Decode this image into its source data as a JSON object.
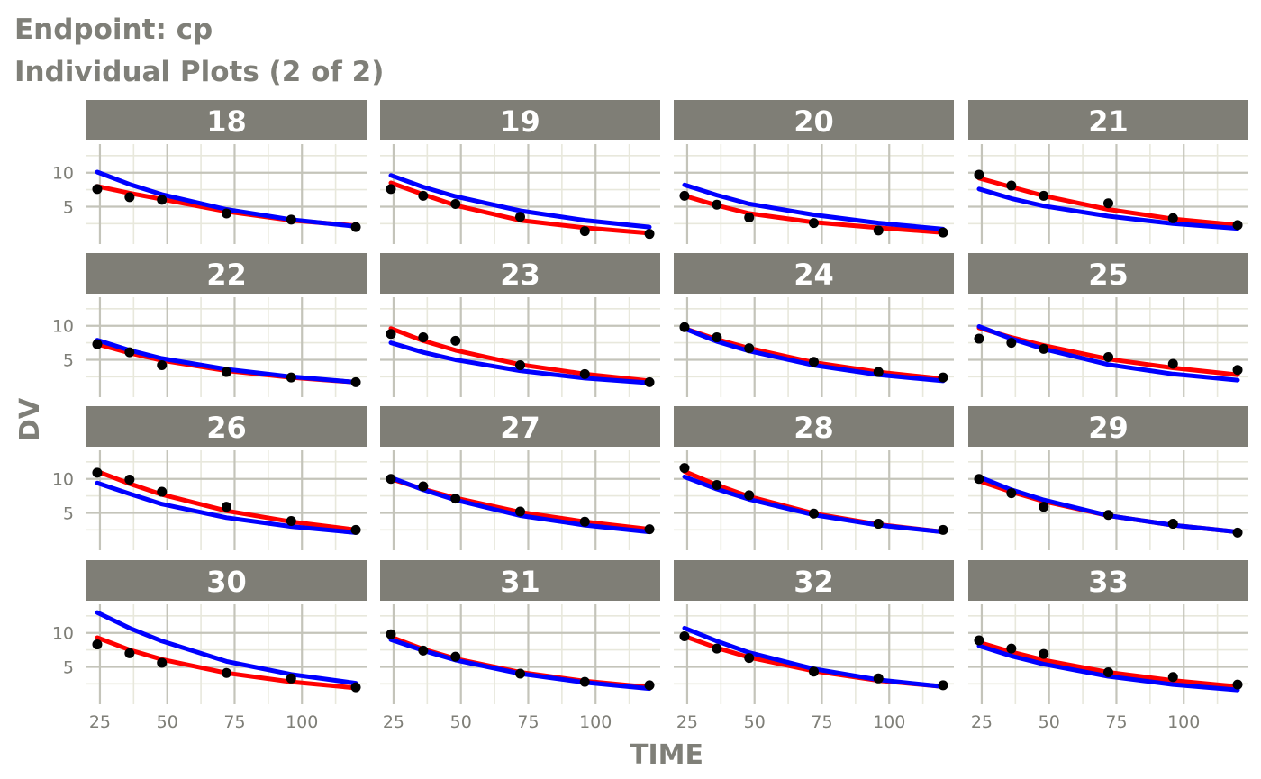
{
  "chart_data": {
    "type": "line",
    "title": "Endpoint:  cp",
    "subtitle": "Individual Plots (2 of 2)",
    "xlabel": "TIME",
    "ylabel": "DV",
    "xlim": [
      20,
      124
    ],
    "ylim": [
      -0.5,
      14.2
    ],
    "x_ticks": [
      25,
      50,
      75,
      100
    ],
    "y_ticks": [
      5,
      10
    ],
    "grid": true,
    "legend": "none",
    "layout": {
      "rows": 4,
      "cols": 4
    },
    "colors": {
      "observed": "#000000",
      "pred": "#ff0000",
      "ipred": "#0000ff",
      "strip": "#7f7e76"
    },
    "series_styles": [
      {
        "key": "obs",
        "kind": "point",
        "color": "#000000"
      },
      {
        "key": "pred",
        "kind": "line",
        "color": "#ff0000"
      },
      {
        "key": "ipred",
        "kind": "line",
        "color": "#0000ff"
      }
    ],
    "x": [
      24,
      36,
      48,
      72,
      96,
      120
    ],
    "panels": [
      {
        "label": "18",
        "obs": [
          7.6,
          6.4,
          6.0,
          4.0,
          3.1,
          2.0
        ],
        "pred": [
          8.0,
          7.0,
          6.1,
          4.3,
          3.0,
          2.2
        ],
        "ipred": [
          10.1,
          8.3,
          6.8,
          4.6,
          3.1,
          2.1
        ]
      },
      {
        "label": "19",
        "obs": [
          7.6,
          6.6,
          5.4,
          3.5,
          1.4,
          1.0
        ],
        "pred": [
          8.5,
          6.8,
          5.2,
          3.0,
          1.9,
          1.1
        ],
        "ipred": [
          9.6,
          7.9,
          6.5,
          4.4,
          3.0,
          2.0
        ]
      },
      {
        "label": "20",
        "obs": [
          6.6,
          5.3,
          3.4,
          2.6,
          1.5,
          1.2
        ],
        "pred": [
          6.6,
          5.2,
          4.0,
          2.7,
          1.9,
          1.2
        ],
        "ipred": [
          8.2,
          6.7,
          5.4,
          3.8,
          2.6,
          1.7
        ]
      },
      {
        "label": "21",
        "obs": [
          9.7,
          8.1,
          6.6,
          5.5,
          3.3,
          2.3
        ],
        "pred": [
          9.2,
          7.9,
          6.6,
          4.6,
          3.2,
          2.3
        ],
        "ipred": [
          7.6,
          6.2,
          5.1,
          3.6,
          2.5,
          1.8
        ]
      },
      {
        "label": "22",
        "obs": [
          7.3,
          6.1,
          4.2,
          3.2,
          2.4,
          1.7
        ],
        "pred": [
          7.3,
          6.0,
          4.9,
          3.4,
          2.4,
          1.7
        ],
        "ipred": [
          7.9,
          6.4,
          5.2,
          3.6,
          2.5,
          1.7
        ]
      },
      {
        "label": "23",
        "obs": [
          8.8,
          8.3,
          7.8,
          4.2,
          2.9,
          1.7
        ],
        "pred": [
          9.6,
          7.8,
          6.4,
          4.3,
          2.9,
          1.9
        ],
        "ipred": [
          7.5,
          6.1,
          5.0,
          3.4,
          2.3,
          1.6
        ]
      },
      {
        "label": "24",
        "obs": [
          9.8,
          8.3,
          6.7,
          4.7,
          3.2,
          2.4
        ],
        "pred": [
          9.6,
          8.0,
          6.7,
          4.6,
          3.2,
          2.2
        ],
        "ipred": [
          9.6,
          7.7,
          6.3,
          4.2,
          2.8,
          1.9
        ]
      },
      {
        "label": "25",
        "obs": [
          8.1,
          7.5,
          6.6,
          5.4,
          4.4,
          3.5
        ],
        "pred": [
          9.7,
          8.3,
          7.1,
          5.1,
          3.8,
          2.8
        ],
        "ipred": [
          9.9,
          8.1,
          6.6,
          4.3,
          2.9,
          2.0
        ]
      },
      {
        "label": "26",
        "obs": [
          10.9,
          9.9,
          8.1,
          5.9,
          3.8,
          2.5
        ],
        "pred": [
          11.1,
          9.3,
          7.7,
          5.3,
          3.7,
          2.5
        ],
        "ipred": [
          9.4,
          7.8,
          6.3,
          4.3,
          3.0,
          2.1
        ]
      },
      {
        "label": "27",
        "obs": [
          10.0,
          8.9,
          7.1,
          5.2,
          3.7,
          2.6
        ],
        "pred": [
          10.0,
          8.5,
          7.2,
          5.1,
          3.7,
          2.6
        ],
        "ipred": [
          10.2,
          8.4,
          6.9,
          4.6,
          3.2,
          2.2
        ]
      },
      {
        "label": "28",
        "obs": [
          11.6,
          9.1,
          7.6,
          4.9,
          3.4,
          2.5
        ],
        "pred": [
          11.1,
          9.1,
          7.4,
          4.9,
          3.3,
          2.2
        ],
        "ipred": [
          10.3,
          8.5,
          7.0,
          4.7,
          3.2,
          2.2
        ]
      },
      {
        "label": "29",
        "obs": [
          10.0,
          7.9,
          5.9,
          4.7,
          3.4,
          2.1
        ],
        "pred": [
          9.7,
          8.1,
          6.7,
          4.6,
          3.2,
          2.2
        ],
        "ipred": [
          10.3,
          8.4,
          6.9,
          4.6,
          3.2,
          2.2
        ]
      },
      {
        "label": "30",
        "obs": [
          8.3,
          7.0,
          5.6,
          4.1,
          3.3,
          2.0
        ],
        "pred": [
          9.3,
          7.5,
          6.1,
          4.1,
          2.8,
          1.9
        ],
        "ipred": [
          13.0,
          10.7,
          8.8,
          5.8,
          3.9,
          2.6
        ]
      },
      {
        "label": "31",
        "obs": [
          9.8,
          7.4,
          6.5,
          4.0,
          2.8,
          2.3
        ],
        "pred": [
          9.4,
          7.6,
          6.2,
          4.2,
          2.9,
          2.0
        ],
        "ipred": [
          9.0,
          7.4,
          6.0,
          4.0,
          2.7,
          1.8
        ]
      },
      {
        "label": "32",
        "obs": [
          9.5,
          7.7,
          6.3,
          4.3,
          3.3,
          2.3
        ],
        "pred": [
          9.5,
          7.8,
          6.4,
          4.4,
          3.0,
          2.1
        ],
        "ipred": [
          10.7,
          8.8,
          7.1,
          4.7,
          3.1,
          2.1
        ]
      },
      {
        "label": "33",
        "obs": [
          8.9,
          7.7,
          6.9,
          4.2,
          3.5,
          2.4
        ],
        "pred": [
          8.6,
          7.2,
          6.0,
          4.2,
          3.0,
          2.1
        ],
        "ipred": [
          8.1,
          6.6,
          5.4,
          3.6,
          2.4,
          1.6
        ]
      }
    ]
  }
}
